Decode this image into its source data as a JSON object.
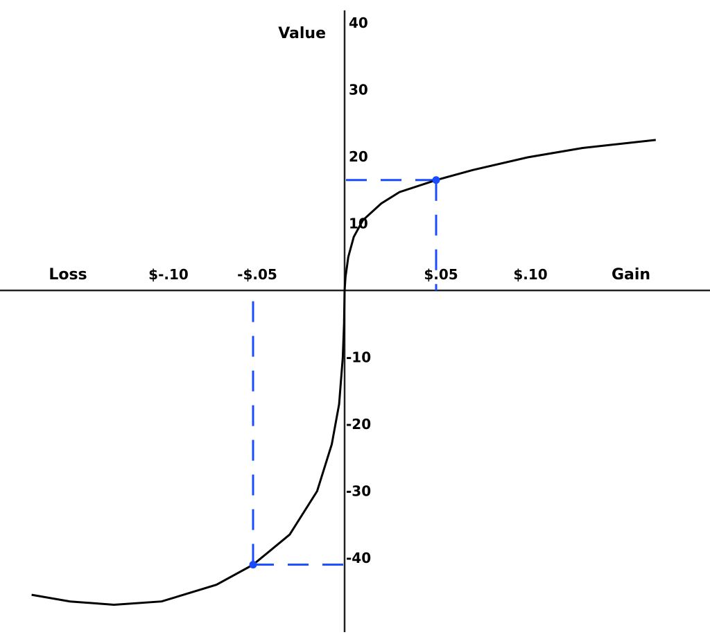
{
  "chart_data": {
    "type": "line",
    "title": "",
    "xlabel_left": "Loss",
    "xlabel_right": "Gain",
    "ylabel": "Value",
    "x_tick_labels": [
      {
        "value": -0.1,
        "label": "$-.10"
      },
      {
        "value": -0.05,
        "label": "-$.05"
      },
      {
        "value": 0.05,
        "label": "$.05"
      },
      {
        "value": 0.1,
        "label": "$.10"
      }
    ],
    "y_ticks": [
      40,
      30,
      20,
      10,
      -10,
      -20,
      -30,
      -40
    ],
    "y_tick_labels": [
      "40",
      "30",
      "20",
      "10",
      "-10",
      "-20",
      "-30",
      "-40"
    ],
    "xlim": [
      -0.188,
      0.199
    ],
    "ylim": [
      -51,
      43
    ],
    "grid": false,
    "series": [
      {
        "color": "#000000",
        "points": [
          [
            -0.171,
            -45.5
          ],
          [
            -0.15,
            -46.5
          ],
          [
            -0.126,
            -47
          ],
          [
            -0.1,
            -46.5
          ],
          [
            -0.07,
            -44
          ],
          [
            -0.05,
            -41
          ],
          [
            -0.03,
            -36.5
          ],
          [
            -0.015,
            -30
          ],
          [
            -0.007,
            -23
          ],
          [
            -0.003,
            -17
          ],
          [
            -0.001,
            -10
          ],
          [
            -0.0003,
            -5
          ],
          [
            0,
            0
          ],
          [
            0.0005,
            2
          ],
          [
            0.002,
            5
          ],
          [
            0.005,
            8
          ],
          [
            0.01,
            10.5
          ],
          [
            0.02,
            13
          ],
          [
            0.03,
            14.7
          ],
          [
            0.05,
            16.5
          ],
          [
            0.07,
            18
          ],
          [
            0.1,
            19.9
          ],
          [
            0.13,
            21.3
          ],
          [
            0.17,
            22.5
          ]
        ]
      }
    ],
    "highlighted_points": [
      {
        "x": 0.05,
        "y": 16.5,
        "color": "#1a4cff"
      },
      {
        "x": -0.05,
        "y": -41,
        "color": "#1a4cff"
      }
    ]
  }
}
